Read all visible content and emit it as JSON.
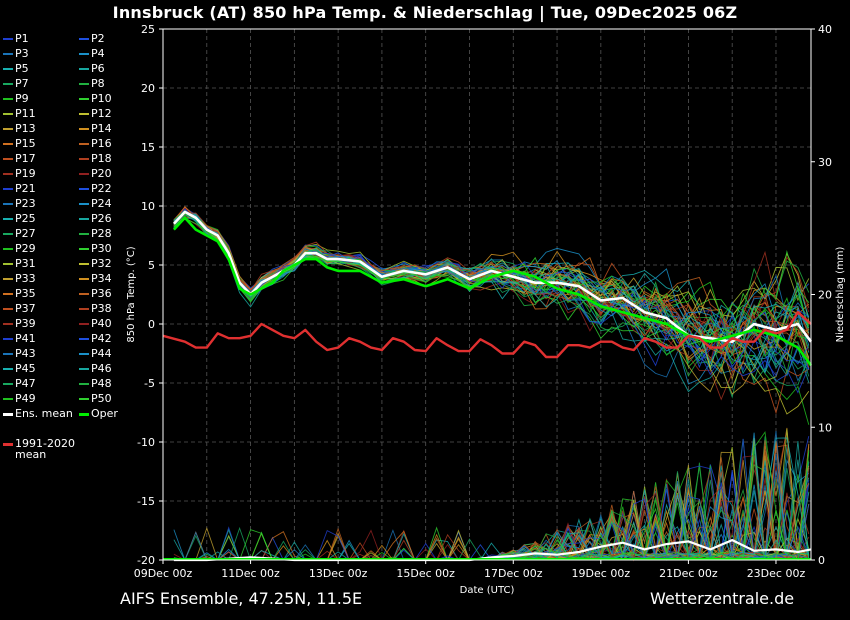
{
  "title": "Innsbruck  (AT)  850 hPa Temp. & Niederschlag | Tue, 09Dec2025 06Z",
  "footer": {
    "source": "AIFS Ensemble, 47.25N, 11.5E",
    "brand": "Wetterzentrale.de"
  },
  "legend": {
    "members": [
      "P1",
      "P2",
      "P3",
      "P4",
      "P5",
      "P6",
      "P7",
      "P8",
      "P9",
      "P10",
      "P11",
      "P12",
      "P13",
      "P14",
      "P15",
      "P16",
      "P17",
      "P18",
      "P19",
      "P20",
      "P21",
      "P22",
      "P23",
      "P24",
      "P25",
      "P26",
      "P27",
      "P28",
      "P29",
      "P30",
      "P31",
      "P32",
      "P33",
      "P34",
      "P35",
      "P36",
      "P37",
      "P38",
      "P39",
      "P40",
      "P41",
      "P42",
      "P43",
      "P44",
      "P45",
      "P46",
      "P47",
      "P48",
      "P49",
      "P50"
    ],
    "member_colors": [
      "#1f3fd0",
      "#1f50e0",
      "#1a74b8",
      "#1a90c8",
      "#18b0b0",
      "#18a8a0",
      "#18a860",
      "#20b040",
      "#20c020",
      "#30d030",
      "#a0c030",
      "#c0c030",
      "#c0a030",
      "#d09020",
      "#d07020",
      "#c06020",
      "#c05020",
      "#b04020",
      "#a03020",
      "#902020",
      "#1f3fd0",
      "#1f50e0",
      "#1a74b8",
      "#1a90c8",
      "#18b0b0",
      "#18a8a0",
      "#18a860",
      "#20b040",
      "#20c020",
      "#30d030",
      "#a0c030",
      "#c0c030",
      "#c0a030",
      "#d09020",
      "#d07020",
      "#c06020",
      "#c05020",
      "#b04020",
      "#a03020",
      "#902020",
      "#1f3fd0",
      "#1f50e0",
      "#1a74b8",
      "#1a90c8",
      "#18b0b0",
      "#18a8a0",
      "#18a860",
      "#20b040",
      "#20c020",
      "#30d030"
    ],
    "ens_mean": "Ens. mean",
    "oper": "Oper",
    "climate_line1": "1991-2020",
    "climate_line2": "mean"
  },
  "colors": {
    "ens_mean": "#ffffff",
    "oper": "#00ee00",
    "climate": "#e03030",
    "grid": "#555555"
  },
  "chart_data": {
    "type": "line",
    "xlabel": "Date (UTC)",
    "ylabel": "850 hPa Temp. (°C)",
    "y2label": "Niederschlag (mm)",
    "ylim": [
      -20,
      25
    ],
    "y2lim": [
      0,
      40
    ],
    "yticks": [
      -20,
      -15,
      -10,
      -5,
      0,
      5,
      10,
      15,
      20,
      25
    ],
    "y2ticks": [
      0,
      10,
      20,
      30,
      40
    ],
    "xticks": [
      "09Dec 00z",
      "11Dec 00z",
      "13Dec 00z",
      "15Dec 00z",
      "17Dec 00z",
      "19Dec 00z",
      "21Dec 00z",
      "23Dec 00z"
    ],
    "x_range_days": [
      0,
      14.8
    ],
    "grid": true,
    "series_temp": [
      {
        "name": "Ens. mean",
        "x": [
          0.25,
          0.5,
          0.75,
          1.0,
          1.25,
          1.5,
          1.75,
          2.0,
          2.25,
          2.5,
          2.75,
          3.0,
          3.25,
          3.5,
          3.75,
          4.0,
          4.5,
          5.0,
          5.5,
          6.0,
          6.5,
          7.0,
          7.5,
          8.0,
          8.5,
          9.0,
          9.5,
          10.0,
          10.5,
          11.0,
          11.5,
          12.0,
          12.5,
          13.0,
          13.5,
          14.0,
          14.5,
          14.8
        ],
        "y": [
          8.5,
          9.5,
          9.0,
          8.0,
          7.5,
          6.0,
          3.5,
          2.5,
          3.5,
          4.0,
          4.5,
          5.0,
          6.0,
          6.0,
          5.5,
          5.5,
          5.3,
          4.0,
          4.5,
          4.2,
          4.8,
          3.8,
          4.5,
          4.0,
          3.5,
          3.5,
          3.2,
          2.0,
          2.2,
          1.0,
          0.5,
          -1.0,
          -1.2,
          -1.5,
          0.0,
          -0.5,
          0.0,
          -1.5
        ]
      },
      {
        "name": "Oper",
        "x": [
          0.25,
          0.5,
          0.75,
          1.0,
          1.25,
          1.5,
          1.75,
          2.0,
          2.25,
          2.5,
          2.75,
          3.0,
          3.25,
          3.5,
          3.75,
          4.0,
          4.5,
          5.0,
          5.5,
          6.0,
          6.5,
          7.0,
          7.5,
          8.0,
          8.5,
          9.0,
          9.5,
          10.0,
          10.5,
          11.0,
          11.5,
          12.0,
          12.5,
          13.0,
          13.5,
          14.0,
          14.5,
          14.8
        ],
        "y": [
          8.0,
          9.0,
          8.0,
          7.5,
          7.0,
          5.5,
          3.0,
          2.5,
          3.0,
          3.5,
          4.5,
          5.0,
          5.5,
          5.5,
          4.8,
          4.5,
          4.5,
          3.5,
          3.8,
          3.2,
          3.8,
          3.0,
          4.0,
          4.5,
          4.0,
          3.0,
          2.5,
          1.5,
          1.0,
          0.5,
          0.0,
          -1.0,
          -1.5,
          -1.0,
          -0.5,
          -1.0,
          -2.0,
          -3.5
        ]
      },
      {
        "name": "1991-2020 mean",
        "x": [
          0.0,
          0.5,
          0.75,
          1.0,
          1.25,
          1.5,
          1.75,
          2.0,
          2.25,
          2.5,
          2.75,
          3.0,
          3.25,
          3.5,
          3.75,
          4.0,
          4.25,
          4.5,
          4.75,
          5.0,
          5.25,
          5.5,
          5.75,
          6.0,
          6.25,
          6.5,
          6.75,
          7.0,
          7.25,
          7.5,
          7.75,
          8.0,
          8.25,
          8.5,
          8.75,
          9.0,
          9.25,
          9.5,
          9.75,
          10.0,
          10.25,
          10.5,
          10.75,
          11.0,
          11.25,
          11.5,
          11.75,
          12.0,
          12.25,
          12.5,
          12.75,
          13.0,
          13.25,
          13.5,
          13.75,
          14.0,
          14.25,
          14.5,
          14.8
        ],
        "y": [
          -1.0,
          -1.5,
          -2.0,
          -2.0,
          -0.8,
          -1.2,
          -1.2,
          -1.0,
          0.0,
          -0.5,
          -1.0,
          -1.2,
          -0.5,
          -1.5,
          -2.2,
          -2.0,
          -1.2,
          -1.5,
          -2.0,
          -2.2,
          -1.2,
          -1.5,
          -2.2,
          -2.3,
          -1.2,
          -1.8,
          -2.3,
          -2.3,
          -1.3,
          -1.8,
          -2.5,
          -2.5,
          -1.5,
          -1.8,
          -2.8,
          -2.8,
          -1.8,
          -1.8,
          -2.0,
          -1.5,
          -1.5,
          -2.0,
          -2.2,
          -1.2,
          -1.5,
          -2.0,
          -2.0,
          -1.0,
          -1.2,
          -2.0,
          -2.0,
          -1.2,
          -1.5,
          -1.5,
          -0.5,
          -0.8,
          -0.5,
          1.0,
          0.0
        ]
      }
    ],
    "series_precip_mean": {
      "name": "Ens. mean precip",
      "x": [
        0.25,
        1.0,
        2.0,
        3.0,
        4.0,
        5.0,
        6.0,
        7.0,
        7.5,
        8.0,
        8.5,
        9.0,
        9.5,
        10.0,
        10.5,
        11.0,
        11.5,
        12.0,
        12.5,
        13.0,
        13.5,
        14.0,
        14.5,
        14.8
      ],
      "y": [
        0.0,
        0.0,
        0.2,
        0.0,
        0.0,
        0.0,
        0.0,
        0.0,
        0.2,
        0.3,
        0.5,
        0.4,
        0.6,
        1.0,
        1.3,
        0.8,
        1.2,
        1.4,
        0.8,
        1.5,
        0.7,
        0.8,
        0.6,
        0.8
      ]
    }
  }
}
